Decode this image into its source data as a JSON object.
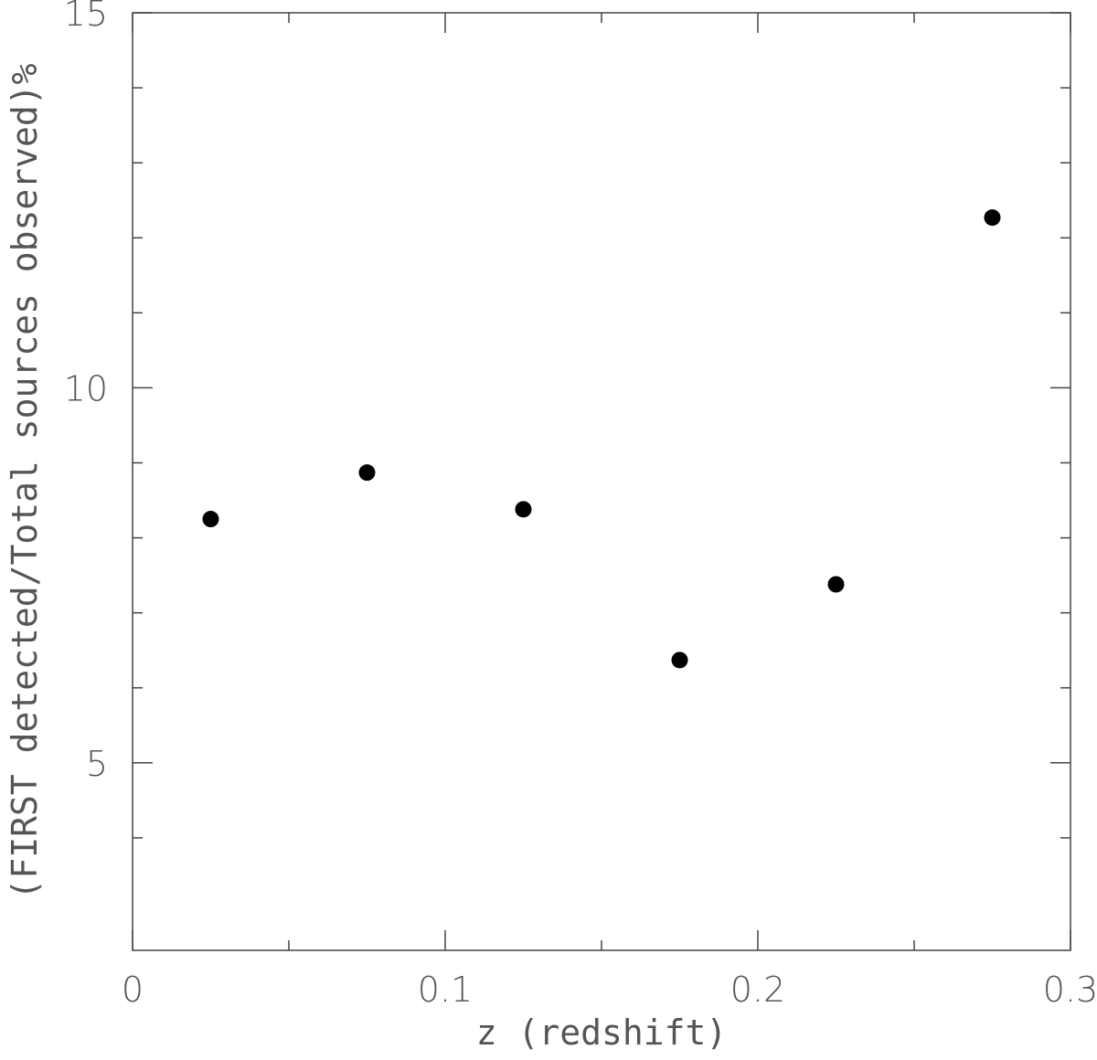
{
  "chart_data": {
    "type": "scatter",
    "title": "",
    "xlabel": "z (redshift)",
    "ylabel": "(FIRST detected/Total sources observed)%",
    "xlim": [
      0,
      0.3
    ],
    "ylim": [
      2.5,
      15
    ],
    "x_ticks": [
      0,
      0.1,
      0.2,
      0.3
    ],
    "x_tick_labels": [
      "0",
      "0.1",
      "0.2",
      "0.3"
    ],
    "x_minor_ticks": [
      0.05,
      0.15,
      0.25
    ],
    "y_ticks": [
      5,
      10,
      15
    ],
    "y_tick_labels": [
      "5",
      "10",
      "15"
    ],
    "y_minor_ticks": [
      4,
      6,
      7,
      8,
      9,
      11,
      12,
      13,
      14
    ],
    "grid": false,
    "legend": "none",
    "marker_color": "#000000",
    "axis_color": "#444444",
    "series": [
      {
        "x": [
          0.025,
          0.075,
          0.125,
          0.175,
          0.225,
          0.275
        ],
        "y": [
          8.25,
          8.87,
          8.38,
          6.37,
          7.38,
          12.27
        ]
      }
    ]
  }
}
